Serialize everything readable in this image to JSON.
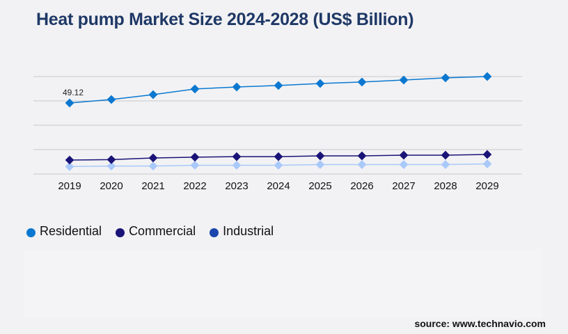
{
  "chart_data": {
    "type": "line",
    "title": "Heat pump Market Size 2024-2028 (US$ Billion)",
    "xlabel": "",
    "ylabel": "",
    "categories": [
      "2019",
      "2020",
      "2021",
      "2022",
      "2023",
      "2024",
      "2025",
      "2026",
      "2027",
      "2028",
      "2029"
    ],
    "ylim": [
      0,
      67.4
    ],
    "grid": true,
    "legend": "bottom-left",
    "series": [
      {
        "name": "Residential",
        "color": "#0a78d0",
        "marker_color": "#0a78d0",
        "values": [
          49.12,
          51.5,
          54.9,
          58.8,
          60.2,
          61.2,
          62.6,
          63.6,
          65.0,
          66.5,
          67.4
        ]
      },
      {
        "name": "Commercial",
        "color": "#1a1377",
        "marker_color": "#1a1377",
        "values": [
          9.6,
          9.9,
          11.1,
          11.6,
          12.0,
          12.0,
          12.5,
          12.5,
          13.0,
          13.0,
          13.5
        ]
      },
      {
        "name": "Industrial",
        "color": "#a9c9fa",
        "marker_color": "#a9c9fa",
        "legend_color": "#1b45ad",
        "values": [
          5.1,
          5.5,
          5.5,
          6.0,
          6.0,
          6.0,
          6.5,
          6.5,
          6.5,
          6.5,
          7.0
        ]
      }
    ],
    "annotations": [
      {
        "series": 0,
        "index": 0,
        "text": "49.12"
      }
    ]
  },
  "source": "source: www.technavio.com"
}
